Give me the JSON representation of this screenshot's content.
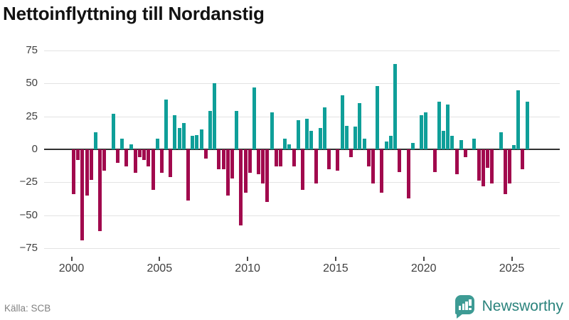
{
  "header": {
    "title": "Nettoinflyttning till Nordanstig"
  },
  "footer": {
    "source": "Källa: SCB",
    "brand": "Newsworthy"
  },
  "chart_data": {
    "type": "bar",
    "title": "Nettoinflyttning till Nordanstig",
    "frequency": "quarterly",
    "start_period": "2000Q1",
    "end_period": "2025Q4",
    "values": [
      -34,
      -8,
      -69,
      -35,
      -23,
      13,
      -62,
      -16,
      0,
      27,
      -10,
      8,
      -13,
      4,
      -18,
      -6,
      -8,
      -13,
      -31,
      8,
      -18,
      38,
      -21,
      26,
      16,
      20,
      -39,
      10,
      11,
      15,
      -7,
      29,
      50,
      -15,
      -15,
      -35,
      -22,
      29,
      -58,
      -33,
      -18,
      47,
      -19,
      -26,
      -40,
      28,
      -13,
      -13,
      8,
      4,
      -13,
      22,
      -31,
      23,
      14,
      -26,
      16,
      32,
      -15,
      0,
      -16,
      41,
      18,
      -6,
      17,
      35,
      8,
      -13,
      -26,
      48,
      -33,
      6,
      10,
      65,
      -17,
      0,
      -37,
      5,
      0,
      26,
      28,
      0,
      -17,
      36,
      14,
      34,
      10,
      -19,
      7,
      -6,
      0,
      8,
      -24,
      -28,
      -14,
      -26,
      0,
      13,
      -34,
      -26,
      3,
      45,
      -15,
      36
    ],
    "ylim": [
      -75,
      75
    ],
    "yticks": [
      {
        "v": 75,
        "label": "75"
      },
      {
        "v": 50,
        "label": "50"
      },
      {
        "v": 25,
        "label": "25"
      },
      {
        "v": 0,
        "label": "0"
      },
      {
        "v": -25,
        "label": "−25"
      },
      {
        "v": -50,
        "label": "−50"
      },
      {
        "v": -75,
        "label": "−75"
      }
    ],
    "xticks": [
      {
        "year": 2000,
        "label": "2000"
      },
      {
        "year": 2005,
        "label": "2005"
      },
      {
        "year": 2010,
        "label": "2010"
      },
      {
        "year": 2015,
        "label": "2015"
      },
      {
        "year": 2020,
        "label": "2020"
      },
      {
        "year": 2025,
        "label": "2025"
      }
    ],
    "positive_color": "#0f9f99",
    "negative_color": "#a1094d",
    "grid": true,
    "legend": "none"
  }
}
